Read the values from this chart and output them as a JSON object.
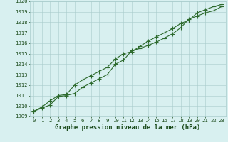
{
  "title": "Graphe pression niveau de la mer (hPa)",
  "x_values": [
    0,
    1,
    2,
    3,
    4,
    5,
    6,
    7,
    8,
    9,
    10,
    11,
    12,
    13,
    14,
    15,
    16,
    17,
    18,
    19,
    20,
    21,
    22,
    23
  ],
  "y1_values": [
    1009.5,
    1009.8,
    1010.1,
    1010.9,
    1011.0,
    1011.2,
    1011.8,
    1012.2,
    1012.6,
    1013.0,
    1014.0,
    1014.4,
    1015.3,
    1015.5,
    1015.8,
    1016.1,
    1016.5,
    1016.9,
    1017.5,
    1018.3,
    1018.6,
    1018.9,
    1019.1,
    1019.5
  ],
  "y2_values": [
    1009.5,
    1009.9,
    1010.5,
    1011.0,
    1011.1,
    1012.0,
    1012.5,
    1012.9,
    1013.3,
    1013.7,
    1014.5,
    1015.0,
    1015.2,
    1015.7,
    1016.2,
    1016.6,
    1017.0,
    1017.4,
    1017.9,
    1018.2,
    1018.9,
    1019.2,
    1019.5,
    1019.7
  ],
  "line_color": "#2d6a2d",
  "bg_color": "#d8f0f0",
  "grid_color": "#a8cccc",
  "text_color": "#1a4a1a",
  "ylim_min": 1009,
  "ylim_max": 1020,
  "ytick_step": 1,
  "xlim_min": -0.5,
  "xlim_max": 23.5,
  "marker": "+",
  "markersize": 4,
  "linewidth": 0.8,
  "title_fontsize": 6.5,
  "tick_fontsize": 5.2,
  "figure_width": 3.2,
  "figure_height": 2.0,
  "dpi": 100
}
